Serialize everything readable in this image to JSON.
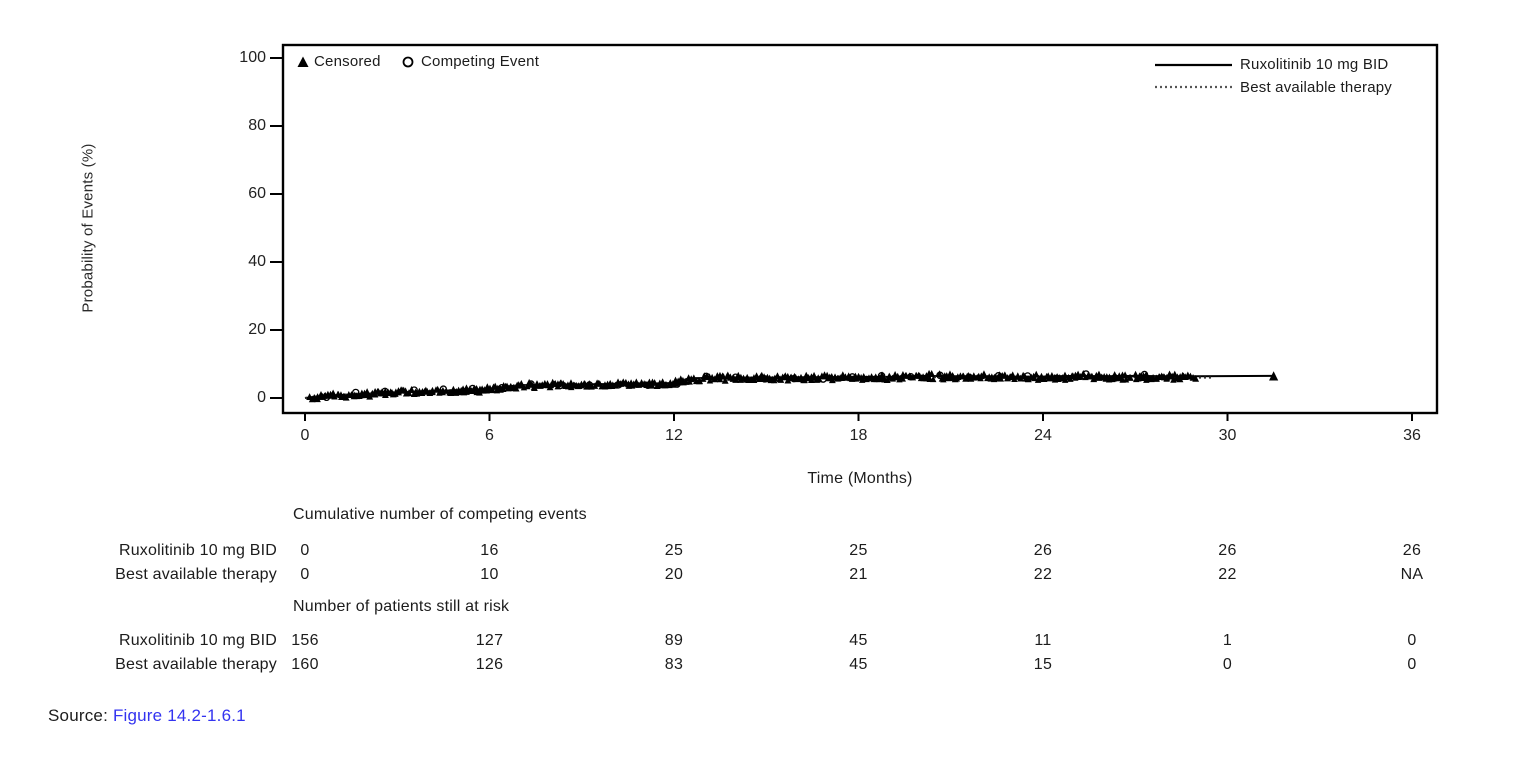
{
  "figure": {
    "y_axis": {
      "label": "Probability of Events (%)"
    },
    "x_axis": {
      "label": "Time (Months)"
    }
  },
  "chart_data": {
    "type": "line",
    "subtype": "cumulative-incidence-curve",
    "title": "",
    "xlabel": "Time (Months)",
    "ylabel": "Probability of Events (%)",
    "xlim": [
      0,
      36.8
    ],
    "ylim": [
      0,
      100
    ],
    "x_ticks": [
      0,
      6,
      12,
      18,
      24,
      30,
      36
    ],
    "y_ticks": [
      0,
      20,
      40,
      60,
      80,
      100
    ],
    "grid": false,
    "legend_position": "top-right-inside",
    "marker_legend": [
      {
        "marker": "triangle",
        "label": "Censored"
      },
      {
        "marker": "circle",
        "label": "Competing Event"
      }
    ],
    "series": [
      {
        "name": "Ruxolitinib 10 mg BID",
        "line": "solid",
        "points": [
          [
            0,
            0
          ],
          [
            0.5,
            0.5
          ],
          [
            1,
            0.8
          ],
          [
            2,
            1.2
          ],
          [
            3,
            1.6
          ],
          [
            4,
            2.0
          ],
          [
            5,
            2.3
          ],
          [
            6,
            2.6
          ],
          [
            6.5,
            3.3
          ],
          [
            7,
            3.8
          ],
          [
            8,
            3.9
          ],
          [
            9,
            4.0
          ],
          [
            10,
            4.1
          ],
          [
            11,
            4.2
          ],
          [
            12,
            4.4
          ],
          [
            12.5,
            5.8
          ],
          [
            13,
            5.9
          ],
          [
            14,
            6.0
          ],
          [
            15,
            6.0
          ],
          [
            16,
            6.1
          ],
          [
            17,
            6.1
          ],
          [
            18,
            6.2
          ],
          [
            19,
            6.2
          ],
          [
            20,
            6.5
          ],
          [
            21,
            6.4
          ],
          [
            22,
            6.4
          ],
          [
            23,
            6.3
          ],
          [
            24,
            6.3
          ],
          [
            25,
            6.5
          ],
          [
            26,
            6.4
          ],
          [
            27,
            6.5
          ],
          [
            28,
            6.4
          ],
          [
            29,
            6.4
          ],
          [
            31.5,
            6.5
          ]
        ]
      },
      {
        "name": "Best available therapy",
        "line": "dotted",
        "points": [
          [
            0,
            0
          ],
          [
            0.5,
            0.6
          ],
          [
            1,
            0.9
          ],
          [
            2,
            1.3
          ],
          [
            3,
            1.7
          ],
          [
            4,
            2.1
          ],
          [
            5,
            2.4
          ],
          [
            6,
            2.7
          ],
          [
            6.5,
            3.2
          ],
          [
            7,
            3.6
          ],
          [
            8,
            3.8
          ],
          [
            9,
            3.9
          ],
          [
            10,
            4.0
          ],
          [
            11,
            4.1
          ],
          [
            12,
            4.3
          ],
          [
            12.5,
            5.5
          ],
          [
            13,
            5.7
          ],
          [
            14,
            5.8
          ],
          [
            16,
            5.9
          ],
          [
            18,
            6.0
          ],
          [
            20,
            6.1
          ],
          [
            22,
            6.1
          ],
          [
            24,
            6.0
          ],
          [
            26,
            6.1
          ],
          [
            28,
            6.0
          ],
          [
            29.5,
            6.0
          ]
        ]
      }
    ],
    "annotations": "Both curves overlap heavily; dense censored (triangle) and competing-event (circle) marks form a thick black band rising from 0% to about 6-7% by month 12-13 and plateauing through ~month 29; solid curve extends to ~month 31.5 ending with a censor triangle."
  },
  "tables": [
    {
      "title": "Cumulative number of competing events",
      "columns": [
        0,
        6,
        12,
        18,
        24,
        30,
        36
      ],
      "rows": [
        {
          "label": "Ruxolitinib 10 mg BID",
          "values": [
            "0",
            "16",
            "25",
            "25",
            "26",
            "26",
            "26"
          ]
        },
        {
          "label": "Best available therapy",
          "values": [
            "0",
            "10",
            "20",
            "21",
            "22",
            "22",
            "NA"
          ]
        }
      ]
    },
    {
      "title": "Number of patients still at risk",
      "columns": [
        0,
        6,
        12,
        18,
        24,
        30,
        36
      ],
      "rows": [
        {
          "label": "Ruxolitinib 10 mg BID",
          "values": [
            "156",
            "127",
            "89",
            "45",
            "11",
            "1",
            "0"
          ]
        },
        {
          "label": "Best available therapy",
          "values": [
            "160",
            "126",
            "83",
            "45",
            "15",
            "0",
            "0"
          ]
        }
      ]
    }
  ],
  "source": {
    "prefix": "Source:",
    "link": "Figure 14.2-1.6.1",
    "link_color": "#3333f0",
    "text_color": "#1c1c1c"
  }
}
